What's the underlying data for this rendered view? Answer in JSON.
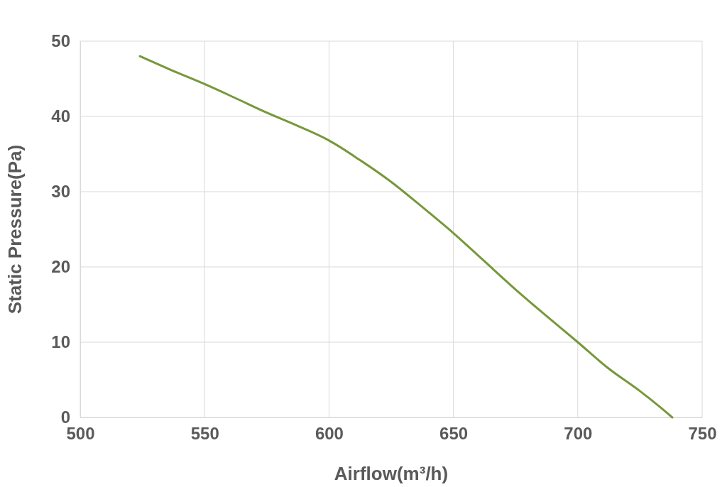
{
  "chart_data": {
    "type": "line",
    "xlabel": "Airflow(m³/h)",
    "ylabel": "Static Pressure(Pa)",
    "x": [
      524,
      537,
      550,
      562,
      575,
      587,
      600,
      612,
      625,
      637,
      650,
      662,
      675,
      687,
      700,
      712,
      725,
      733,
      738
    ],
    "series": [
      {
        "color": "#76983a",
        "values": [
          48,
          46.1,
          44.3,
          42.5,
          40.5,
          38.8,
          36.8,
          34.3,
          31.3,
          28.1,
          24.5,
          20.9,
          17,
          13.6,
          10,
          6.6,
          3.5,
          1.4,
          0
        ]
      }
    ],
    "xlim": [
      500,
      750
    ],
    "xticks": [
      500,
      550,
      600,
      650,
      700,
      750
    ],
    "ylim": [
      0,
      50
    ],
    "yticks": [
      0,
      10,
      20,
      30,
      40,
      50
    ],
    "grid": true,
    "marker": "none",
    "line_style": "solid"
  }
}
